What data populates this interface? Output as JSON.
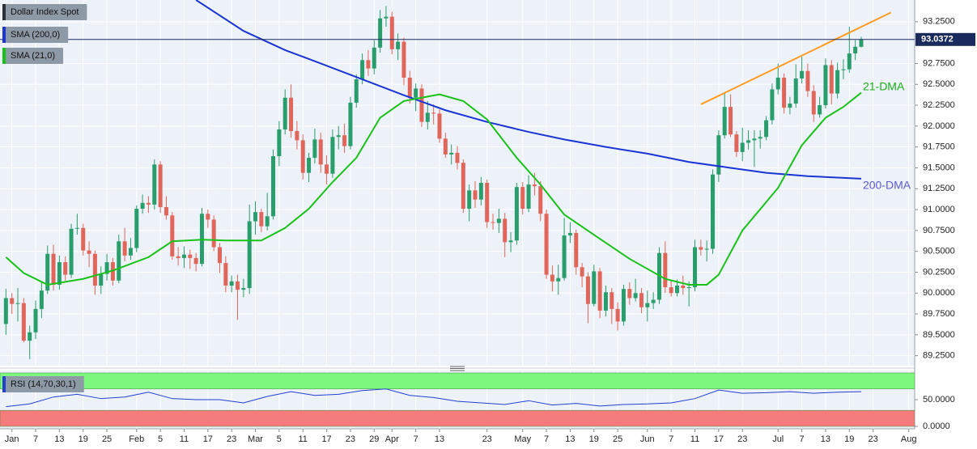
{
  "chart_data": [
    {
      "type": "candlestick",
      "title": "Dollar Index Spot",
      "up_color": "#2a9d6c",
      "down_color": "#e0665b",
      "ohlc": {
        "open": [
          89.63,
          89.94,
          89.87,
          89.88,
          89.43,
          89.53,
          89.81,
          90.03,
          90.47,
          90.1,
          90.37,
          90.22,
          90.77,
          90.78,
          90.51,
          90.47,
          90.09,
          90.23,
          90.37,
          90.15,
          90.62,
          90.45,
          90.54,
          91.01,
          91.08,
          91.06,
          91.54,
          91.03,
          90.93,
          90.44,
          90.42,
          90.46,
          90.42,
          90.35,
          90.95,
          90.88,
          90.55,
          90.36,
          90.09,
          90.14,
          90.04,
          90.06,
          90.86,
          90.97,
          90.8,
          90.92,
          91.64,
          91.96,
          92.34,
          91.94,
          91.83,
          91.44,
          91.62,
          91.84,
          91.54,
          91.43,
          91.87,
          91.89,
          91.76,
          92.28,
          92.56,
          92.79,
          92.69,
          92.94,
          93.29,
          93.31,
          92.92,
          93.01,
          92.58,
          92.34,
          92.45,
          92.05,
          92.16,
          92.15,
          91.85,
          91.66,
          91.68,
          91.56,
          91.01,
          91.23,
          91.12,
          91.32,
          90.85,
          90.84,
          90.89,
          90.61,
          90.63,
          91.27,
          91.01,
          91.3,
          91.28,
          90.95,
          90.22,
          90.14,
          90.18,
          90.69,
          90.72,
          90.31,
          90.2,
          89.87,
          90.26,
          89.79,
          90.01,
          89.81,
          89.66,
          90.05,
          89.94,
          90.0,
          89.83,
          89.88,
          89.92,
          90.48,
          90.07,
          90.0,
          90.09,
          90.06,
          90.07,
          90.55,
          90.52,
          90.53,
          91.42,
          91.89,
          92.23,
          91.9,
          91.69,
          91.8,
          91.83,
          91.85,
          91.87,
          92.07,
          92.44,
          92.58,
          92.22,
          92.27,
          92.57,
          92.66,
          92.42,
          92.14,
          92.25,
          92.73,
          92.39,
          92.67,
          92.68,
          92.87,
          92.95
        ],
        "high": [
          90.05,
          90.0,
          90.06,
          89.94,
          89.61,
          89.91,
          90.13,
          90.57,
          90.58,
          90.45,
          90.44,
          90.83,
          90.95,
          90.83,
          90.62,
          90.51,
          90.32,
          90.47,
          90.42,
          90.7,
          90.78,
          90.66,
          91.05,
          91.18,
          91.16,
          91.6,
          91.58,
          91.16,
          90.97,
          90.55,
          90.56,
          90.52,
          90.48,
          91.02,
          91.0,
          90.93,
          90.6,
          90.44,
          90.21,
          90.22,
          90.17,
          91.06,
          91.1,
          91.01,
          91.2,
          91.72,
          92.06,
          92.44,
          92.5,
          92.06,
          91.9,
          91.68,
          91.97,
          91.92,
          91.65,
          91.96,
          92.0,
          92.03,
          92.35,
          92.62,
          92.87,
          92.91,
          93.03,
          93.39,
          93.44,
          93.37,
          93.11,
          93.06,
          92.66,
          92.51,
          92.5,
          92.3,
          92.26,
          92.2,
          91.92,
          91.78,
          91.76,
          91.6,
          91.3,
          91.34,
          91.39,
          91.36,
          90.95,
          91.01,
          90.96,
          90.73,
          91.32,
          91.33,
          91.41,
          91.44,
          91.34,
          91.0,
          90.33,
          90.34,
          90.9,
          90.85,
          90.76,
          90.36,
          90.25,
          90.34,
          90.3,
          90.09,
          90.06,
          89.89,
          90.1,
          90.13,
          90.17,
          90.06,
          90.03,
          90.01,
          90.55,
          90.62,
          90.15,
          90.16,
          90.21,
          90.14,
          90.64,
          90.64,
          90.63,
          91.48,
          91.95,
          92.41,
          92.38,
          91.94,
          91.98,
          91.95,
          91.95,
          91.95,
          92.12,
          92.51,
          92.75,
          92.63,
          92.35,
          92.74,
          92.83,
          92.75,
          92.49,
          92.35,
          92.81,
          92.79,
          92.76,
          92.8,
          93.19,
          93.03,
          93.07
        ],
        "low": [
          89.5,
          89.75,
          89.66,
          89.41,
          89.21,
          89.45,
          89.7,
          89.99,
          90.03,
          90.04,
          90.15,
          90.18,
          90.7,
          90.45,
          90.31,
          89.98,
          89.99,
          90.15,
          90.09,
          90.12,
          90.38,
          90.4,
          90.49,
          90.95,
          90.96,
          91.0,
          90.96,
          90.88,
          90.4,
          90.33,
          90.3,
          90.29,
          90.26,
          90.32,
          90.78,
          90.5,
          90.24,
          90.01,
          90.01,
          89.68,
          89.95,
          89.99,
          90.7,
          90.73,
          90.75,
          90.88,
          91.52,
          91.9,
          91.86,
          91.72,
          91.36,
          91.33,
          91.55,
          91.44,
          91.3,
          91.38,
          91.72,
          91.68,
          91.72,
          92.22,
          92.5,
          92.6,
          92.62,
          92.88,
          93.19,
          92.86,
          92.79,
          92.49,
          92.27,
          92.18,
          91.99,
          91.96,
          92.02,
          91.8,
          91.62,
          91.54,
          91.48,
          90.96,
          90.86,
          91.02,
          91.05,
          90.78,
          90.76,
          90.72,
          90.43,
          90.49,
          90.58,
          90.94,
          90.97,
          91.17,
          90.86,
          90.17,
          90.02,
          89.98,
          90.15,
          90.6,
          90.22,
          90.07,
          89.64,
          89.84,
          89.7,
          89.72,
          89.63,
          89.55,
          89.61,
          89.86,
          89.9,
          89.76,
          89.66,
          89.81,
          89.87,
          90.0,
          89.96,
          89.96,
          89.98,
          89.84,
          90.02,
          90.45,
          90.38,
          90.47,
          91.33,
          91.85,
          91.87,
          91.63,
          91.58,
          91.72,
          91.51,
          91.73,
          91.83,
          92.02,
          92.38,
          92.15,
          92.14,
          92.22,
          92.51,
          92.35,
          92.05,
          92.1,
          92.21,
          92.26,
          92.33,
          92.56,
          92.64,
          92.79,
          92.94
        ],
        "close": [
          89.94,
          89.87,
          89.88,
          89.43,
          89.53,
          89.81,
          90.03,
          90.47,
          90.1,
          90.37,
          90.22,
          90.77,
          90.78,
          90.51,
          90.47,
          90.09,
          90.23,
          90.37,
          90.15,
          90.62,
          90.45,
          90.54,
          91.01,
          91.08,
          91.06,
          91.54,
          91.03,
          90.93,
          90.44,
          90.42,
          90.46,
          90.42,
          90.35,
          90.95,
          90.88,
          90.55,
          90.36,
          90.09,
          90.14,
          90.04,
          90.06,
          90.86,
          90.97,
          90.8,
          90.92,
          91.64,
          91.96,
          92.34,
          91.94,
          91.83,
          91.44,
          91.62,
          91.84,
          91.54,
          91.43,
          91.87,
          91.89,
          91.76,
          92.28,
          92.56,
          92.79,
          92.69,
          92.94,
          93.29,
          93.31,
          92.92,
          93.01,
          92.58,
          92.34,
          92.45,
          92.05,
          92.16,
          92.15,
          91.85,
          91.66,
          91.68,
          91.56,
          91.01,
          91.23,
          91.12,
          91.32,
          90.85,
          90.84,
          90.89,
          90.61,
          90.63,
          91.27,
          91.01,
          91.3,
          91.28,
          90.95,
          90.22,
          90.14,
          90.18,
          90.69,
          90.72,
          90.31,
          90.2,
          89.87,
          90.26,
          89.79,
          90.01,
          89.81,
          89.66,
          90.05,
          89.94,
          90.0,
          89.83,
          89.88,
          89.92,
          90.48,
          90.07,
          90.0,
          90.09,
          90.06,
          90.07,
          90.55,
          90.52,
          90.53,
          91.42,
          91.89,
          92.23,
          91.9,
          91.69,
          91.8,
          91.83,
          91.85,
          91.87,
          92.07,
          92.44,
          92.58,
          92.22,
          92.27,
          92.57,
          92.66,
          92.42,
          92.14,
          92.25,
          92.73,
          92.39,
          92.67,
          92.68,
          92.87,
          92.95,
          93.0372
        ]
      },
      "last_price_color": "#1b2a5c",
      "series": [
        {
          "name": "SMA (200,0)",
          "color": "#1a35d4",
          "label": "200-DMA",
          "label_color": "#5b5bd8",
          "x": [
            32,
            40,
            47,
            53,
            60,
            67,
            74,
            81,
            88,
            94,
            101,
            108,
            115,
            122,
            128,
            135,
            144
          ],
          "values": [
            93.51,
            93.14,
            92.91,
            92.75,
            92.56,
            92.37,
            92.19,
            92.05,
            91.93,
            91.84,
            91.75,
            91.67,
            91.57,
            91.5,
            91.44,
            91.4,
            91.37
          ]
        },
        {
          "name": "SMA (21,0)",
          "color": "#19c219",
          "label": "21-DMA",
          "label_color": "#17b017",
          "x": [
            0,
            3,
            7,
            13,
            18,
            24,
            28,
            33,
            37,
            43,
            47,
            51,
            55,
            59,
            63,
            67,
            73,
            77,
            81,
            86,
            90,
            94,
            100,
            105,
            111,
            115,
            118,
            120,
            124,
            130,
            134,
            138,
            141,
            144
          ],
          "values": [
            90.43,
            90.24,
            90.1,
            90.17,
            90.27,
            90.43,
            90.62,
            90.64,
            90.63,
            90.63,
            90.78,
            91.01,
            91.33,
            91.62,
            92.1,
            92.3,
            92.38,
            92.3,
            92.08,
            91.62,
            91.3,
            90.94,
            90.65,
            90.41,
            90.17,
            90.1,
            90.1,
            90.22,
            90.75,
            91.26,
            91.77,
            92.1,
            92.23,
            92.4
          ]
        }
      ],
      "trend_line": {
        "color": "#ff9a1f",
        "x": [
          117,
          149
        ],
        "values": [
          92.26,
          93.36
        ]
      },
      "xlim": [
        -1,
        153
      ],
      "ylim": [
        89.15,
        93.51
      ],
      "xticks": [
        {
          "value": 1,
          "label": "Jan"
        },
        {
          "value": 5,
          "label": "7"
        },
        {
          "value": 9,
          "label": "13"
        },
        {
          "value": 13,
          "label": "19"
        },
        {
          "value": 17,
          "label": "25"
        },
        {
          "value": 22,
          "label": "Feb"
        },
        {
          "value": 26,
          "label": "5"
        },
        {
          "value": 30,
          "label": "11"
        },
        {
          "value": 34,
          "label": "17"
        },
        {
          "value": 38,
          "label": "23"
        },
        {
          "value": 42,
          "label": "Mar"
        },
        {
          "value": 46,
          "label": "5"
        },
        {
          "value": 50,
          "label": "11"
        },
        {
          "value": 54,
          "label": "17"
        },
        {
          "value": 58,
          "label": "23"
        },
        {
          "value": 62,
          "label": "29"
        },
        {
          "value": 65,
          "label": "Apr"
        },
        {
          "value": 69,
          "label": "7"
        },
        {
          "value": 73,
          "label": "13"
        },
        {
          "value": 81,
          "label": "23"
        },
        {
          "value": 87,
          "label": "May"
        },
        {
          "value": 91,
          "label": "7"
        },
        {
          "value": 95,
          "label": "13"
        },
        {
          "value": 99,
          "label": "19"
        },
        {
          "value": 103,
          "label": "25"
        },
        {
          "value": 108,
          "label": "Jun"
        },
        {
          "value": 112,
          "label": "7"
        },
        {
          "value": 116,
          "label": "11"
        },
        {
          "value": 120,
          "label": "17"
        },
        {
          "value": 124,
          "label": "23"
        },
        {
          "value": 130,
          "label": "Jul"
        },
        {
          "value": 134,
          "label": "7"
        },
        {
          "value": 138,
          "label": "13"
        },
        {
          "value": 142,
          "label": "19"
        },
        {
          "value": 146,
          "label": "23"
        },
        {
          "value": 152,
          "label": "Aug"
        }
      ],
      "yticks": [
        {
          "value": 93.25,
          "label": "93.2500"
        },
        {
          "value": 92.75,
          "label": "92.7500"
        },
        {
          "value": 92.5,
          "label": "92.5000"
        },
        {
          "value": 92.25,
          "label": "92.2500"
        },
        {
          "value": 92,
          "label": "92.0000"
        },
        {
          "value": 91.75,
          "label": "91.7500"
        },
        {
          "value": 91.5,
          "label": "91.5000"
        },
        {
          "value": 91.25,
          "label": "91.2500"
        },
        {
          "value": 91,
          "label": "91.0000"
        },
        {
          "value": 90.75,
          "label": "90.7500"
        },
        {
          "value": 90.5,
          "label": "90.5000"
        },
        {
          "value": 90.25,
          "label": "90.2500"
        },
        {
          "value": 90,
          "label": "90.0000"
        },
        {
          "value": 89.75,
          "label": "89.7500"
        },
        {
          "value": 89.5,
          "label": "89.5000"
        },
        {
          "value": 89.25,
          "label": "89.2500"
        }
      ],
      "grid": true
    },
    {
      "type": "line",
      "title": "RSI (14,70,30,1)",
      "series": [
        {
          "color": "#2040d0",
          "x": [
            0,
            4,
            8,
            12,
            16,
            20,
            24,
            28,
            32,
            36,
            40,
            44,
            48,
            52,
            56,
            60,
            64,
            68,
            72,
            76,
            80,
            84,
            88,
            92,
            96,
            100,
            104,
            108,
            112,
            116,
            120,
            124,
            128,
            132,
            136,
            140,
            144
          ],
          "values": [
            37,
            42,
            55,
            60,
            52,
            55,
            64,
            52,
            50,
            50,
            44,
            56,
            65,
            58,
            60,
            67,
            70,
            58,
            54,
            47,
            44,
            41,
            48,
            40,
            43,
            38,
            41,
            42,
            44,
            52,
            68,
            62,
            63,
            65,
            62,
            64,
            65
          ]
        }
      ],
      "bands": [
        {
          "from": 70,
          "to": 100,
          "color": "#7df77d"
        },
        {
          "from": 0,
          "to": 30,
          "color": "#f47c7c"
        }
      ],
      "ylim": [
        0,
        100
      ],
      "yticks": [
        {
          "value": 50,
          "label": "50.0000"
        },
        {
          "value": 0,
          "label": "0.0000"
        }
      ],
      "grid": true
    }
  ]
}
